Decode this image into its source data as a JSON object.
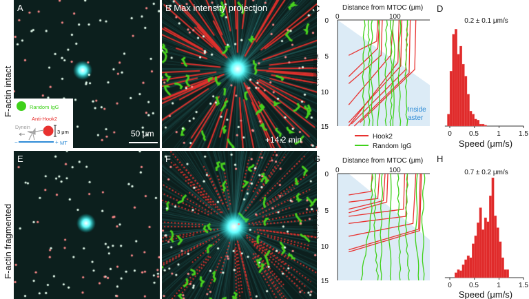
{
  "row_labels": [
    "F-actin intact",
    "F-actin fragmented"
  ],
  "panels": {
    "A": {
      "label": "A",
      "scalebar": "50 μm"
    },
    "B": {
      "label": "B",
      "title": "Max intensity projection",
      "time": "+14.2 min"
    },
    "C": {
      "label": "C"
    },
    "D": {
      "label": "D"
    },
    "E": {
      "label": "E"
    },
    "F": {
      "label": "F"
    },
    "G": {
      "label": "G"
    },
    "H": {
      "label": "H"
    }
  },
  "schematic": {
    "random_igg": "Random IgG",
    "anti_hook2": "Anti-Hook2",
    "dynein": "Dynein",
    "size": "3 μm",
    "mt_minus": "−",
    "mt_plus": "+",
    "mt": "MT"
  },
  "colors": {
    "hook2": "#e8312f",
    "igg": "#3fd11a",
    "aster": "#dcebf6",
    "mt": "#2e8bd6",
    "bar": "#e02b2b"
  },
  "chart_data": [
    {
      "type": "line",
      "panel": "C",
      "xlabel": "Distance from MTOC (μm)",
      "ylabel": "Time (min)",
      "xlim": [
        0,
        165
      ],
      "ylim": [
        15,
        0
      ],
      "xticks": [
        "0",
        "100"
      ],
      "yticks": [
        "0",
        "5",
        "10",
        "15"
      ],
      "region_label": "Inside aster",
      "aster_boundary": [
        [
          0,
          0
        ],
        [
          165,
          9.2
        ]
      ],
      "legend": [
        "Hook2",
        "Random IgG"
      ],
      "series": [
        {
          "name": "Hook2",
          "tracks": [
            [
              [
                72,
                0
              ],
              [
                70,
                3
              ],
              [
                20,
                5
              ]
            ],
            [
              [
                75,
                0
              ],
              [
                72,
                4
              ],
              [
                20,
                8
              ]
            ],
            [
              [
                80,
                0
              ],
              [
                78,
                5
              ],
              [
                20,
                9
              ]
            ],
            [
              [
                100,
                0
              ],
              [
                95,
                5
              ],
              [
                20,
                12
              ]
            ],
            [
              [
                110,
                0
              ],
              [
                108,
                6
              ],
              [
                20,
                15
              ]
            ],
            [
              [
                115,
                0
              ],
              [
                113,
                6.5
              ],
              [
                20,
                14.5
              ]
            ],
            [
              [
                125,
                0
              ],
              [
                122,
                7
              ],
              [
                25,
                14.7
              ]
            ],
            [
              [
                130,
                0
              ],
              [
                128,
                7.5
              ],
              [
                30,
                15
              ]
            ],
            [
              [
                140,
                0
              ],
              [
                138,
                7
              ],
              [
                40,
                14.5
              ]
            ]
          ]
        },
        {
          "name": "Random IgG",
          "tracks": [
            [
              [
                48,
                0
              ],
              [
                46,
                8
              ],
              [
                47,
                15
              ]
            ],
            [
              [
                55,
                0
              ],
              [
                57,
                7
              ],
              [
                56,
                15
              ]
            ],
            [
              [
                62,
                0
              ],
              [
                60,
                6
              ],
              [
                63,
                15
              ]
            ],
            [
              [
                73,
                0
              ],
              [
                75,
                8
              ],
              [
                72,
                15
              ]
            ],
            [
              [
                88,
                0
              ],
              [
                86,
                7
              ],
              [
                87,
                15
              ]
            ],
            [
              [
                95,
                0
              ],
              [
                97,
                9
              ],
              [
                95,
                15
              ]
            ],
            [
              [
                100,
                0
              ],
              [
                101,
                6
              ],
              [
                99,
                15
              ]
            ],
            [
              [
                112,
                0
              ],
              [
                110,
                8
              ],
              [
                112,
                15
              ]
            ],
            [
              [
                125,
                0
              ],
              [
                122,
                7
              ],
              [
                124,
                15
              ]
            ]
          ]
        }
      ]
    },
    {
      "type": "bar",
      "panel": "D",
      "title": "0.2 ± 0.1 μm/s",
      "xlabel": "Speed (μm/s)",
      "xlim": [
        -0.1,
        1.5
      ],
      "xticks": [
        "0",
        "0.5",
        "1",
        "1.5"
      ],
      "bin_width": 0.05,
      "bin_starts": [
        -0.05,
        0,
        0.05,
        0.1,
        0.15,
        0.2,
        0.25,
        0.3,
        0.35,
        0.4,
        0.45,
        0.5,
        0.55,
        0.6,
        0.65,
        0.7
      ],
      "values": [
        0.12,
        0.55,
        0.92,
        0.97,
        0.72,
        0.8,
        0.62,
        0.5,
        0.32,
        0.15,
        0.12,
        0.07,
        0.06,
        0.02,
        0.02,
        0.01
      ]
    },
    {
      "type": "line",
      "panel": "G",
      "xlabel": "Distance from MTOC (μm)",
      "ylabel": "Time (min)",
      "xlim": [
        0,
        165
      ],
      "ylim": [
        15,
        0
      ],
      "xticks": [
        "0",
        "100"
      ],
      "yticks": [
        "0",
        "5",
        "10",
        "15"
      ],
      "aster_boundary": [
        [
          20,
          0
        ],
        [
          165,
          9.3
        ]
      ],
      "series": [
        {
          "name": "Hook2",
          "tracks": [
            [
              [
                62,
                0
              ],
              [
                60,
                2.5
              ],
              [
                20,
                3
              ]
            ],
            [
              [
                75,
                0
              ],
              [
                72,
                3.5
              ],
              [
                20,
                4
              ]
            ],
            [
              [
                85,
                0
              ],
              [
                82,
                3.8
              ],
              [
                20,
                5
              ]
            ],
            [
              [
                90,
                0
              ],
              [
                88,
                4
              ],
              [
                20,
                5.5
              ]
            ],
            [
              [
                120,
                0
              ],
              [
                118,
                5
              ],
              [
                20,
                6
              ]
            ],
            [
              [
                125,
                0
              ],
              [
                122,
                6
              ],
              [
                20,
                7
              ]
            ],
            [
              [
                140,
                0
              ],
              [
                135,
                7
              ],
              [
                20,
                8.8
              ]
            ],
            [
              [
                148,
                0
              ],
              [
                145,
                7.8
              ],
              [
                20,
                10.7
              ]
            ],
            [
              [
                150,
                0
              ],
              [
                147,
                8
              ],
              [
                20,
                11
              ]
            ]
          ]
        },
        {
          "name": "Random IgG",
          "tracks": [
            [
              [
                62,
                0
              ],
              [
                60,
                6
              ],
              [
                42,
                15
              ]
            ],
            [
              [
                68,
                0
              ],
              [
                66,
                8
              ],
              [
                72,
                15
              ]
            ],
            [
              [
                80,
                0
              ],
              [
                78,
                7
              ],
              [
                78,
                15
              ]
            ],
            [
              [
                95,
                0
              ],
              [
                93,
                9
              ],
              [
                95,
                15
              ]
            ],
            [
              [
                108,
                0
              ],
              [
                110,
                7
              ],
              [
                112,
                15
              ]
            ],
            [
              [
                125,
                0
              ],
              [
                122,
                8
              ],
              [
                128,
                15
              ]
            ],
            [
              [
                143,
                0
              ],
              [
                140,
                8
              ],
              [
                145,
                15
              ]
            ],
            [
              [
                155,
                0
              ],
              [
                152,
                6
              ],
              [
                154,
                15
              ]
            ]
          ]
        }
      ]
    },
    {
      "type": "bar",
      "panel": "H",
      "title": "0.7 ± 0.2 μm/s",
      "xlabel": "Speed (μm/s)",
      "xlim": [
        -0.1,
        1.5
      ],
      "xticks": [
        "0",
        "0.5",
        "1",
        "1.5"
      ],
      "bin_width": 0.05,
      "bin_starts": [
        0.1,
        0.15,
        0.2,
        0.25,
        0.3,
        0.35,
        0.4,
        0.45,
        0.5,
        0.55,
        0.6,
        0.65,
        0.7,
        0.75,
        0.8,
        0.85,
        0.9,
        0.95,
        1.0,
        1.05,
        1.1,
        1.15
      ],
      "values": [
        0.05,
        0.08,
        0.07,
        0.13,
        0.18,
        0.22,
        0.2,
        0.34,
        0.42,
        0.55,
        0.7,
        0.48,
        0.6,
        0.56,
        0.82,
        1.0,
        0.62,
        0.5,
        0.36,
        0.2,
        0.08,
        0.08
      ]
    }
  ]
}
